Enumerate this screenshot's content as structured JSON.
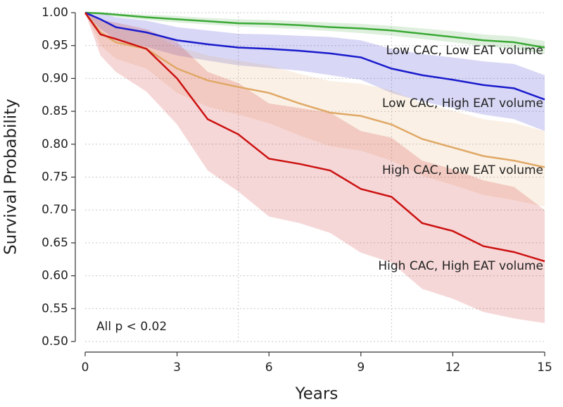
{
  "chart_data": {
    "type": "line",
    "x_label": "Years",
    "y_label": "Survival Probability",
    "annotation": "All p < 0.02",
    "x": [
      0,
      0.5,
      1,
      2,
      3,
      4,
      5,
      6,
      7,
      8,
      9,
      10,
      11,
      12,
      13,
      14,
      15
    ],
    "series": [
      {
        "name": "Low CAC, Low EAT volume",
        "color": "#3aa935",
        "values": [
          1.0,
          0.999,
          0.997,
          0.993,
          0.99,
          0.987,
          0.984,
          0.983,
          0.981,
          0.978,
          0.976,
          0.973,
          0.968,
          0.963,
          0.958,
          0.955,
          0.947
        ],
        "lower": [
          1.0,
          0.997,
          0.994,
          0.989,
          0.985,
          0.982,
          0.979,
          0.977,
          0.975,
          0.972,
          0.969,
          0.965,
          0.96,
          0.955,
          0.949,
          0.945,
          0.937
        ],
        "upper": [
          1.0,
          1.0,
          0.999,
          0.997,
          0.995,
          0.992,
          0.99,
          0.989,
          0.987,
          0.985,
          0.983,
          0.98,
          0.976,
          0.972,
          0.967,
          0.964,
          0.957
        ]
      },
      {
        "name": "Low CAC, High EAT volume",
        "color": "#1a1acc",
        "values": [
          1.0,
          0.99,
          0.978,
          0.97,
          0.958,
          0.952,
          0.947,
          0.945,
          0.942,
          0.938,
          0.932,
          0.915,
          0.905,
          0.898,
          0.89,
          0.885,
          0.868
        ],
        "lower": [
          1.0,
          0.975,
          0.96,
          0.948,
          0.935,
          0.927,
          0.92,
          0.916,
          0.912,
          0.905,
          0.898,
          0.878,
          0.865,
          0.855,
          0.845,
          0.838,
          0.82
        ],
        "upper": [
          1.0,
          1.0,
          0.993,
          0.988,
          0.978,
          0.973,
          0.968,
          0.967,
          0.965,
          0.963,
          0.958,
          0.945,
          0.937,
          0.932,
          0.926,
          0.922,
          0.905
        ]
      },
      {
        "name": "High CAC, Low EAT volume",
        "color": "#e0a866",
        "values": [
          1.0,
          0.97,
          0.955,
          0.945,
          0.915,
          0.897,
          0.887,
          0.878,
          0.862,
          0.848,
          0.843,
          0.83,
          0.808,
          0.795,
          0.782,
          0.775,
          0.765
        ],
        "lower": [
          1.0,
          0.95,
          0.93,
          0.915,
          0.878,
          0.857,
          0.845,
          0.832,
          0.813,
          0.797,
          0.79,
          0.775,
          0.752,
          0.738,
          0.723,
          0.715,
          0.705
        ],
        "upper": [
          1.0,
          0.99,
          0.978,
          0.972,
          0.948,
          0.935,
          0.927,
          0.92,
          0.907,
          0.896,
          0.892,
          0.882,
          0.862,
          0.851,
          0.838,
          0.832,
          0.82
        ]
      },
      {
        "name": "High CAC, High EAT volume",
        "color": "#cc1111",
        "values": [
          1.0,
          0.967,
          0.96,
          0.945,
          0.9,
          0.838,
          0.815,
          0.778,
          0.77,
          0.76,
          0.732,
          0.72,
          0.68,
          0.668,
          0.645,
          0.636,
          0.622
        ],
        "lower": [
          1.0,
          0.935,
          0.91,
          0.88,
          0.83,
          0.76,
          0.728,
          0.69,
          0.68,
          0.665,
          0.635,
          0.62,
          0.58,
          0.565,
          0.545,
          0.535,
          0.528
        ],
        "upper": [
          1.0,
          0.99,
          0.985,
          0.975,
          0.955,
          0.91,
          0.893,
          0.862,
          0.855,
          0.848,
          0.82,
          0.81,
          0.775,
          0.762,
          0.745,
          0.735,
          0.7
        ]
      }
    ],
    "xlim": [
      0,
      15
    ],
    "xticks": [
      0,
      3,
      6,
      9,
      12,
      15
    ],
    "ylim": [
      0.5,
      1.0
    ],
    "yticks": [
      {
        "value": 0.5,
        "label": "0.50"
      },
      0.55,
      {
        "value": 0.6,
        "label": "0.60"
      },
      0.65,
      {
        "value": 0.7,
        "label": "0.70"
      },
      0.75,
      {
        "value": 0.8,
        "label": "0.80"
      },
      0.85,
      {
        "value": 0.9,
        "label": "0.90"
      },
      0.95,
      {
        "value": 1.0,
        "label": "1.00"
      }
    ],
    "x_grid": [
      5,
      10
    ],
    "grid": true
  }
}
